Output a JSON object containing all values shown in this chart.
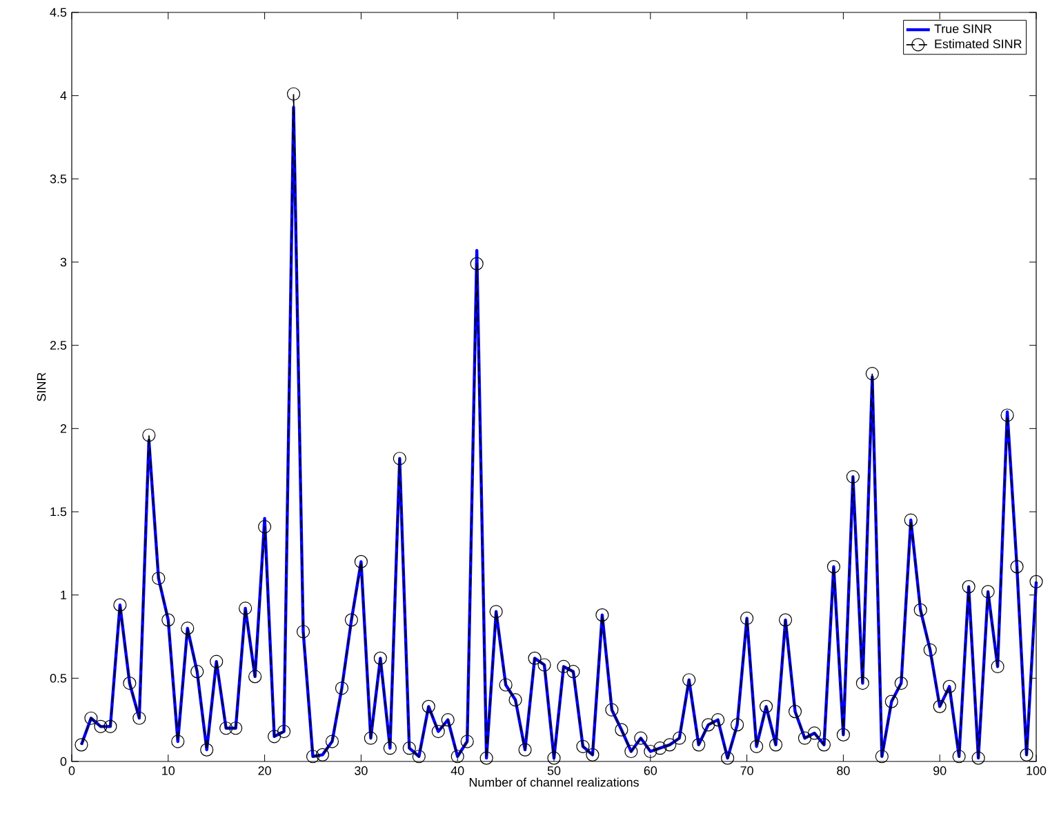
{
  "chart_data": {
    "type": "line",
    "xlabel": "Number of channel realizations",
    "ylabel": "SINR",
    "x": [
      1,
      2,
      3,
      4,
      5,
      6,
      7,
      8,
      9,
      10,
      11,
      12,
      13,
      14,
      15,
      16,
      17,
      18,
      19,
      20,
      21,
      22,
      23,
      24,
      25,
      26,
      27,
      28,
      29,
      30,
      31,
      32,
      33,
      34,
      35,
      36,
      37,
      38,
      39,
      40,
      41,
      42,
      43,
      44,
      45,
      46,
      47,
      48,
      49,
      50,
      51,
      52,
      53,
      54,
      55,
      56,
      57,
      58,
      59,
      60,
      61,
      62,
      63,
      64,
      65,
      66,
      67,
      68,
      69,
      70,
      71,
      72,
      73,
      74,
      75,
      76,
      77,
      78,
      79,
      80,
      81,
      82,
      83,
      84,
      85,
      86,
      87,
      88,
      89,
      90,
      91,
      92,
      93,
      94,
      95,
      96,
      97,
      98,
      99,
      100
    ],
    "series": [
      {
        "name": "True SINR",
        "color": "#0000ff",
        "line_style": "solid",
        "marker": "none",
        "values": [
          0.1,
          0.26,
          0.21,
          0.21,
          0.94,
          0.47,
          0.26,
          1.93,
          1.1,
          0.85,
          0.12,
          0.8,
          0.54,
          0.07,
          0.6,
          0.2,
          0.2,
          0.92,
          0.51,
          1.46,
          0.15,
          0.18,
          3.93,
          0.78,
          0.03,
          0.04,
          0.12,
          0.44,
          0.85,
          1.2,
          0.14,
          0.62,
          0.08,
          1.82,
          0.08,
          0.03,
          0.33,
          0.18,
          0.25,
          0.03,
          0.12,
          3.07,
          0.02,
          0.9,
          0.46,
          0.37,
          0.07,
          0.62,
          0.58,
          0.02,
          0.57,
          0.54,
          0.09,
          0.04,
          0.88,
          0.31,
          0.19,
          0.06,
          0.14,
          0.06,
          0.08,
          0.1,
          0.14,
          0.49,
          0.1,
          0.22,
          0.25,
          0.02,
          0.22,
          0.86,
          0.09,
          0.33,
          0.1,
          0.85,
          0.3,
          0.14,
          0.17,
          0.1,
          1.17,
          0.16,
          1.71,
          0.47,
          2.31,
          0.03,
          0.36,
          0.47,
          1.45,
          0.91,
          0.67,
          0.33,
          0.45,
          0.03,
          1.05,
          0.02,
          1.02,
          0.57,
          2.1,
          1.17,
          0.04,
          1.08
        ]
      },
      {
        "name": "Estimated SINR",
        "color": "#000000",
        "line_style": "dashed",
        "marker": "circle",
        "values": [
          0.1,
          0.26,
          0.21,
          0.21,
          0.94,
          0.47,
          0.26,
          1.96,
          1.1,
          0.85,
          0.12,
          0.8,
          0.54,
          0.07,
          0.6,
          0.2,
          0.2,
          0.92,
          0.51,
          1.41,
          0.15,
          0.18,
          4.01,
          0.78,
          0.03,
          0.04,
          0.12,
          0.44,
          0.85,
          1.2,
          0.14,
          0.62,
          0.08,
          1.82,
          0.08,
          0.03,
          0.33,
          0.18,
          0.25,
          0.03,
          0.12,
          2.99,
          0.02,
          0.9,
          0.46,
          0.37,
          0.07,
          0.62,
          0.58,
          0.02,
          0.57,
          0.54,
          0.09,
          0.04,
          0.88,
          0.31,
          0.19,
          0.06,
          0.14,
          0.06,
          0.08,
          0.1,
          0.14,
          0.49,
          0.1,
          0.22,
          0.25,
          0.02,
          0.22,
          0.86,
          0.09,
          0.33,
          0.1,
          0.85,
          0.3,
          0.14,
          0.17,
          0.1,
          1.17,
          0.16,
          1.71,
          0.47,
          2.33,
          0.03,
          0.36,
          0.47,
          1.45,
          0.91,
          0.67,
          0.33,
          0.45,
          0.03,
          1.05,
          0.02,
          1.02,
          0.57,
          2.08,
          1.17,
          0.04,
          1.08
        ]
      }
    ],
    "xlim": [
      0,
      100
    ],
    "ylim": [
      0,
      4.5
    ],
    "xticks": [
      0,
      10,
      20,
      30,
      40,
      50,
      60,
      70,
      80,
      90,
      100
    ],
    "yticks": [
      0,
      0.5,
      1,
      1.5,
      2,
      2.5,
      3,
      3.5,
      4,
      4.5
    ],
    "grid": false,
    "legend": "top right"
  }
}
